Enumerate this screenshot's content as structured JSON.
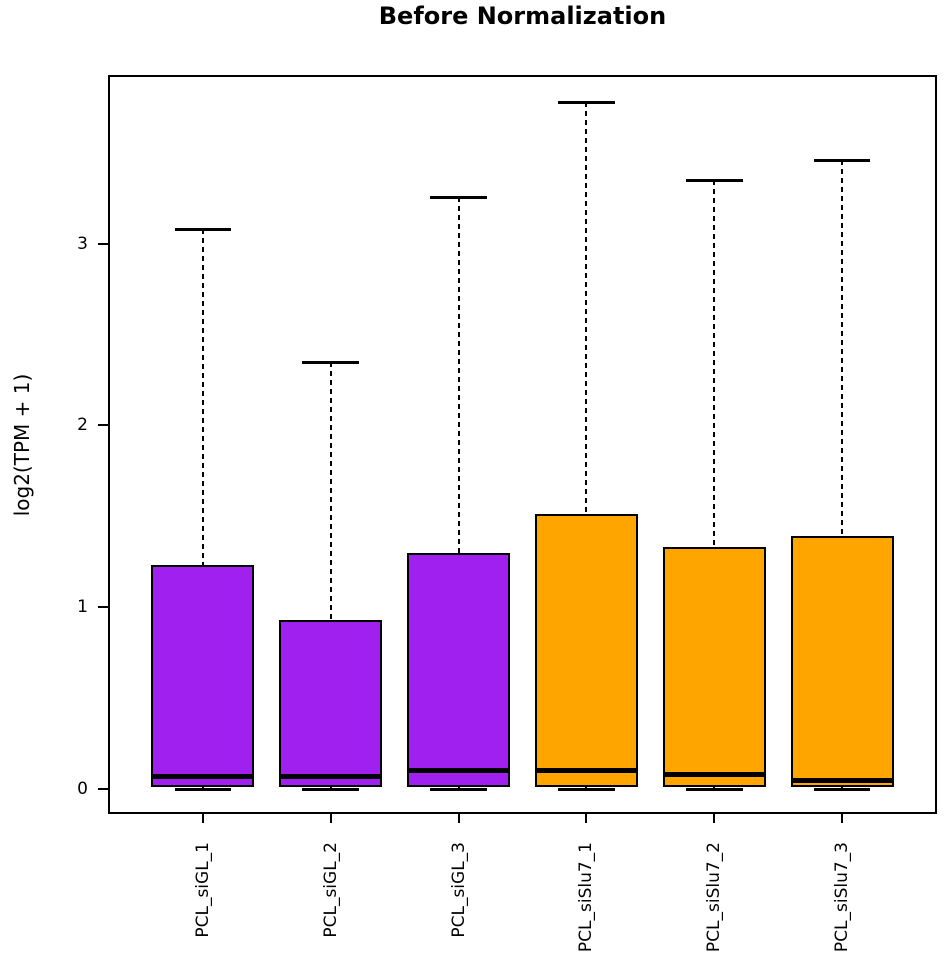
{
  "figure": {
    "title": "Before Normalization"
  },
  "chart_data": {
    "type": "boxplot",
    "title": "Before Normalization",
    "xlabel": "",
    "ylabel": "log2(TPM + 1)",
    "grid": false,
    "legend": false,
    "y_ticks": [
      0,
      1,
      2,
      3
    ],
    "ylim": [
      -0.14,
      3.93
    ],
    "xlim": [
      0.26,
      6.74
    ],
    "box_width": 0.8,
    "cap_width": 0.44,
    "categories": [
      "PCL_siGL_1",
      "PCL_siGL_2",
      "PCL_siGL_3",
      "PCL_siSlu7_1",
      "PCL_siSlu7_2",
      "PCL_siSlu7_3"
    ],
    "boxes": [
      {
        "label": "PCL_siGL_1",
        "group": "siGL",
        "color": "#A020F0",
        "whisker_low": 0,
        "q1": 0.01,
        "median": 0.07,
        "q3": 1.23,
        "whisker_high": 3.08
      },
      {
        "label": "PCL_siGL_2",
        "group": "siGL",
        "color": "#A020F0",
        "whisker_low": 0,
        "q1": 0.01,
        "median": 0.07,
        "q3": 0.93,
        "whisker_high": 2.35
      },
      {
        "label": "PCL_siGL_3",
        "group": "siGL",
        "color": "#A020F0",
        "whisker_low": 0,
        "q1": 0.01,
        "median": 0.1,
        "q3": 1.3,
        "whisker_high": 3.26
      },
      {
        "label": "PCL_siSlu7_1",
        "group": "siSlu7",
        "color": "#FFA500",
        "whisker_low": 0,
        "q1": 0.01,
        "median": 0.1,
        "q3": 1.51,
        "whisker_high": 3.78
      },
      {
        "label": "PCL_siSlu7_2",
        "group": "siSlu7",
        "color": "#FFA500",
        "whisker_low": 0,
        "q1": 0.01,
        "median": 0.08,
        "q3": 1.33,
        "whisker_high": 3.35
      },
      {
        "label": "PCL_siSlu7_3",
        "group": "siSlu7",
        "color": "#FFA500",
        "whisker_low": 0,
        "q1": 0.01,
        "median": 0.05,
        "q3": 1.39,
        "whisker_high": 3.46
      }
    ],
    "colors": {
      "siGL": "#A020F0",
      "siSlu7": "#FFA500",
      "stroke": "#000000",
      "background": "#FFFFFF"
    }
  }
}
